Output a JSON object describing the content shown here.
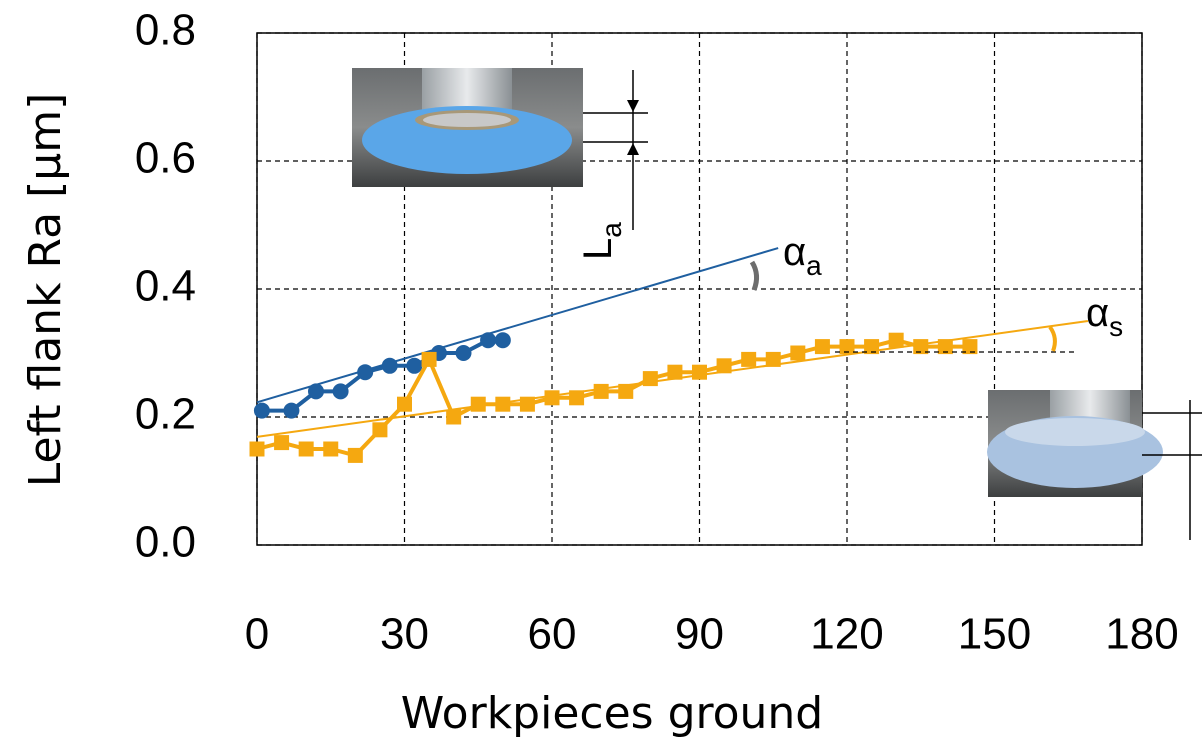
{
  "chart_data": {
    "type": "line",
    "xlabel": "Workpieces ground",
    "ylabel": "Left flank Ra [µm]",
    "xlim": [
      0,
      180
    ],
    "xticks": [
      0,
      30,
      60,
      90,
      120,
      150,
      180
    ],
    "ylim": [
      0,
      0.8
    ],
    "yticks": [
      {
        "value": 0,
        "label": "0.0"
      },
      0.2,
      0.4,
      0.6,
      0.8
    ],
    "grid": true,
    "series": [
      {
        "color": "#1f5fa0",
        "marker": "circle",
        "x": [
          1,
          7,
          12,
          17,
          22,
          27,
          32,
          37,
          42,
          47,
          50
        ],
        "values": [
          0.21,
          0.21,
          0.24,
          0.24,
          0.27,
          0.28,
          0.28,
          0.3,
          0.3,
          0.32,
          0.32
        ]
      },
      {
        "color": "#f5a810",
        "marker": "square",
        "x": [
          0,
          5,
          10,
          15,
          20,
          25,
          30,
          35,
          40,
          45,
          50,
          55,
          60,
          65,
          70,
          75,
          80,
          85,
          90,
          95,
          100,
          105,
          110,
          115,
          120,
          125,
          130,
          135,
          140,
          145
        ],
        "values": [
          0.15,
          0.16,
          0.15,
          0.15,
          0.14,
          0.18,
          0.22,
          0.29,
          0.2,
          0.22,
          0.22,
          0.22,
          0.23,
          0.23,
          0.24,
          0.24,
          0.26,
          0.27,
          0.27,
          0.28,
          0.29,
          0.29,
          0.3,
          0.31,
          0.31,
          0.31,
          0.32,
          0.31,
          0.31,
          0.31
        ]
      }
    ],
    "trendlines": [
      {
        "color": "#1f5fa0",
        "x": [
          0,
          106
        ],
        "values": [
          0.223,
          0.464
        ]
      },
      {
        "color": "#f5a810",
        "x": [
          0,
          169
        ],
        "values": [
          0.169,
          0.35
        ]
      }
    ],
    "annotations": [
      {
        "text": "α",
        "sub": "a"
      },
      {
        "text": "α",
        "sub": "s"
      },
      {
        "text": "L",
        "sub": "a"
      }
    ]
  }
}
